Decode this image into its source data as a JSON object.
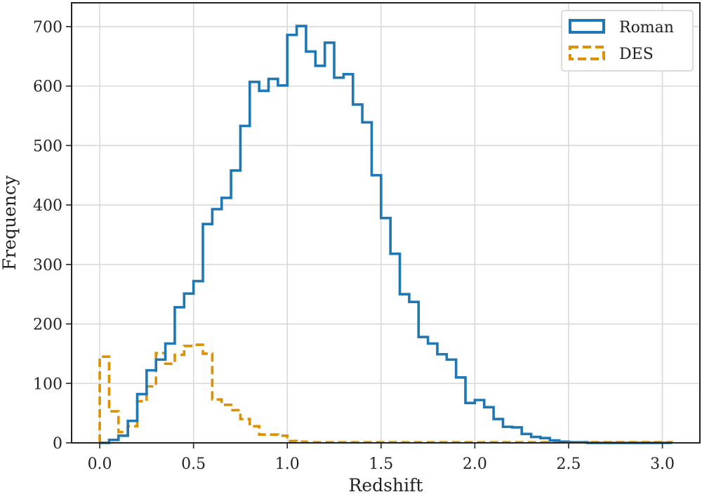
{
  "chart_data": {
    "type": "histogram",
    "title": "",
    "xlabel": "Redshift",
    "ylabel": "Frequency",
    "xlim": [
      -0.15,
      3.2
    ],
    "ylim": [
      0,
      740
    ],
    "bin_width": 0.05,
    "grid": true,
    "legend_position": "top-right",
    "xticks": [
      0.0,
      0.5,
      1.0,
      1.5,
      2.0,
      2.5,
      3.0
    ],
    "xtick_labels": [
      "0.0",
      "0.5",
      "1.0",
      "1.5",
      "2.0",
      "2.5",
      "3.0"
    ],
    "yticks": [
      0,
      100,
      200,
      300,
      400,
      500,
      600,
      700
    ],
    "ytick_labels": [
      "0",
      "100",
      "200",
      "300",
      "400",
      "500",
      "600",
      "700"
    ],
    "series": [
      {
        "name": "Roman",
        "color": "#1f77b4",
        "style": "solid",
        "bin_start": 0.0,
        "values": [
          0,
          5,
          12,
          37,
          82,
          122,
          140,
          167,
          228,
          251,
          272,
          368,
          393,
          412,
          458,
          533,
          607,
          592,
          612,
          601,
          686,
          701,
          658,
          634,
          673,
          614,
          620,
          569,
          539,
          450,
          378,
          318,
          250,
          237,
          178,
          167,
          149,
          140,
          110,
          67,
          72,
          60,
          40,
          27,
          26,
          15,
          10,
          8,
          4,
          2,
          1,
          1,
          0,
          0,
          0,
          0,
          0,
          0,
          0,
          0,
          0
        ]
      },
      {
        "name": "DES",
        "color": "#dd9100",
        "style": "dashed",
        "bin_start": 0.0,
        "values": [
          145,
          53,
          18,
          28,
          70,
          95,
          151,
          133,
          148,
          163,
          165,
          150,
          73,
          64,
          55,
          40,
          28,
          14,
          14,
          12,
          3,
          2,
          1,
          1,
          1,
          1,
          1,
          1,
          1,
          1,
          1,
          1,
          1,
          1,
          1,
          1,
          1,
          1,
          1,
          1,
          1,
          1,
          1,
          1,
          1,
          1,
          1,
          1,
          1,
          1,
          1,
          1,
          1,
          1,
          1,
          1,
          1,
          1,
          1,
          1,
          1
        ]
      }
    ]
  }
}
